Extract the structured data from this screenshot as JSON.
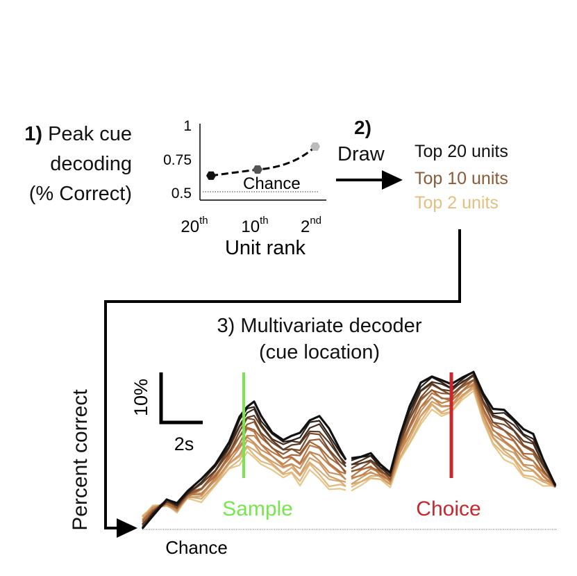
{
  "colors": {
    "top20": "#111111",
    "top10": "#8b5a36",
    "top2": "#e3bf80",
    "sample_marker": "#77e64c",
    "choice_marker": "#c8282c",
    "arrow": "#000000",
    "chance_line": "#555555"
  },
  "step1": {
    "number": "1)",
    "label_lines": [
      "Peak cue",
      "decoding",
      "(% Correct)"
    ]
  },
  "step2": {
    "number": "2)",
    "label": "Draw",
    "items": [
      "Top 20 units",
      "Top 10 units",
      "Top 2 units"
    ]
  },
  "step3": {
    "title_line1": "3) Multivariate decoder",
    "title_line2": "(cue location)"
  },
  "inset_chart": {
    "type": "line",
    "xlabel": "Unit rank",
    "x_ticks": [
      {
        "base": "20",
        "sup": "th"
      },
      {
        "base": "10",
        "sup": "th"
      },
      {
        "base": "2",
        "sup": "nd"
      }
    ],
    "y_ticks": [
      "1",
      "0.75",
      "0.5"
    ],
    "ylim": [
      0.5,
      1.0
    ],
    "points": [
      {
        "rank": "20th",
        "value": 0.66
      },
      {
        "rank": "10th",
        "value": 0.7
      },
      {
        "rank": "2nd",
        "value": 0.85
      }
    ],
    "chance_label": "Chance",
    "chance_value": 0.5
  },
  "main_chart": {
    "ylabel": "Percent correct",
    "scale_bar_y": "10%",
    "scale_bar_x": "2s",
    "sample_label": "Sample",
    "choice_label": "Choice",
    "chance_label": "Chance"
  }
}
